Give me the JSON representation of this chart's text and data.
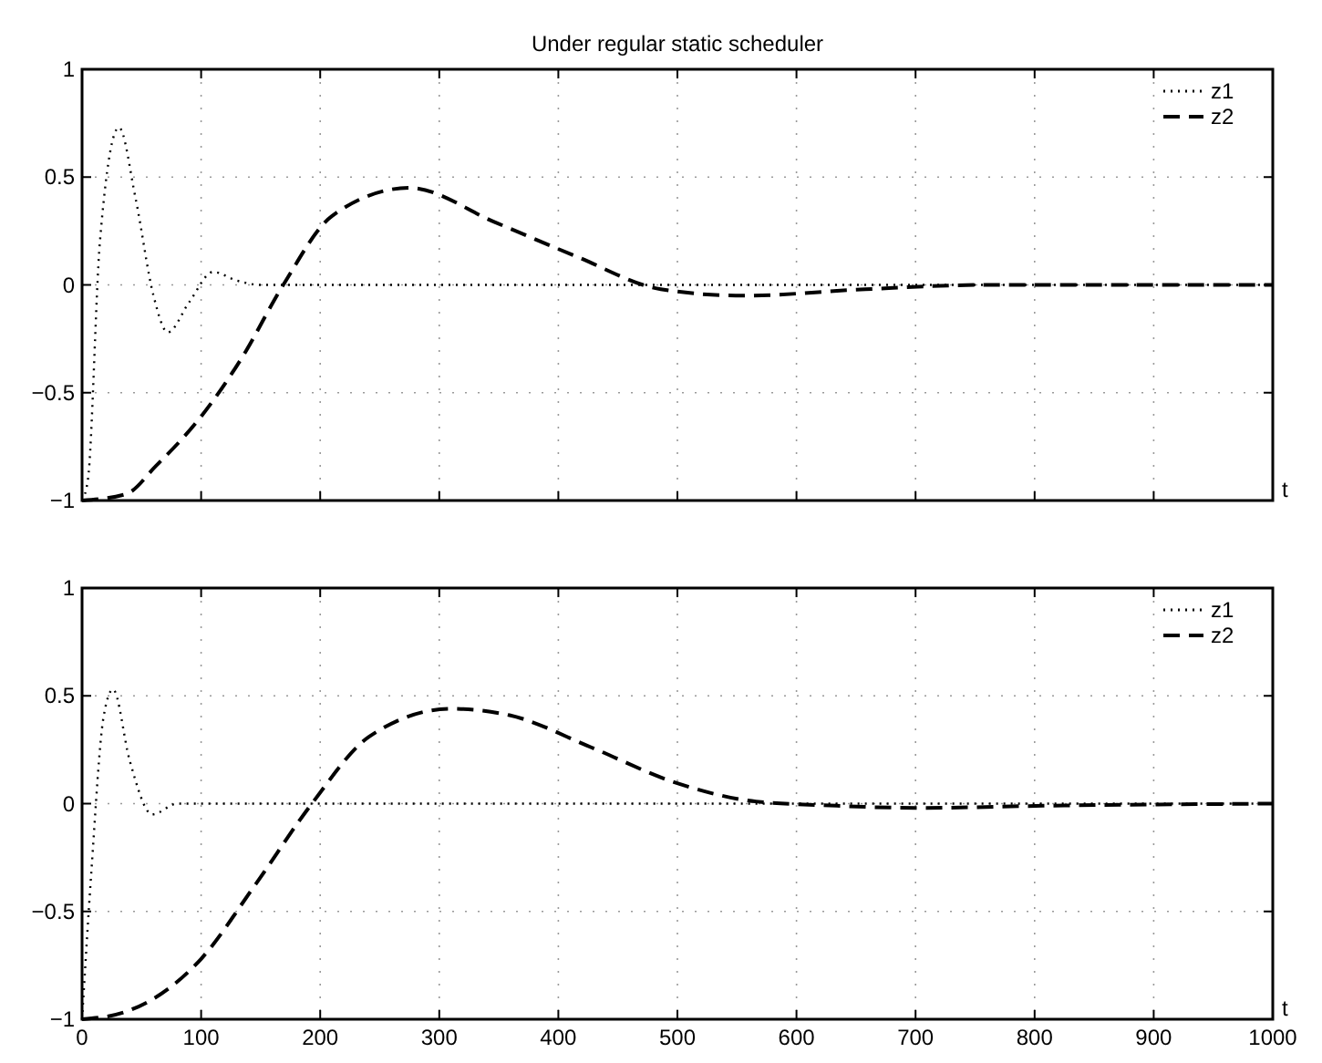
{
  "chart_data": [
    {
      "type": "line",
      "title": "Under regular static scheduler",
      "xlabel": "t",
      "xlim": [
        0,
        1000
      ],
      "ylim": [
        -1,
        1
      ],
      "xticks": [
        0,
        100,
        200,
        300,
        400,
        500,
        600,
        700,
        800,
        900,
        1000
      ],
      "yticks": [
        -1,
        -0.5,
        0,
        0.5,
        1
      ],
      "tick_labels": "y",
      "grid": true,
      "legend": "top right",
      "series": [
        {
          "name": "z1",
          "color": "#000000",
          "line_style": "dotted",
          "x": [
            0,
            5,
            15,
            31,
            45,
            60,
            72,
            90,
            110,
            130,
            150,
            200,
            400,
            1000
          ],
          "values": [
            -1,
            -0.9,
            0.2,
            0.73,
            0.4,
            -0.05,
            -0.22,
            -0.08,
            0.06,
            0.02,
            0,
            0,
            0,
            0
          ]
        },
        {
          "name": "z2",
          "color": "#000000",
          "line_style": "dashed",
          "x": [
            0,
            37,
            62,
            100,
            134,
            169,
            210,
            275,
            347,
            416,
            486,
            555,
            658,
            760,
            1000
          ],
          "values": [
            -1,
            -0.97,
            -0.84,
            -0.61,
            -0.34,
            0,
            0.32,
            0.45,
            0.29,
            0.13,
            -0.02,
            -0.05,
            -0.02,
            0,
            0
          ]
        }
      ]
    },
    {
      "type": "line",
      "xlabel": "t",
      "xlim": [
        0,
        1000
      ],
      "ylim": [
        -1,
        1
      ],
      "xticks": [
        0,
        100,
        200,
        300,
        400,
        500,
        600,
        700,
        800,
        900,
        1000
      ],
      "yticks": [
        -1,
        -0.5,
        0,
        0.5,
        1
      ],
      "grid": true,
      "legend": "top right",
      "series": [
        {
          "name": "z1",
          "color": "#000000",
          "line_style": "dotted",
          "x": [
            0,
            8,
            18,
            26,
            40,
            59,
            80,
            1000
          ],
          "values": [
            -1,
            -0.3,
            0.4,
            0.53,
            0.2,
            -0.05,
            0,
            0
          ]
        },
        {
          "name": "z2",
          "color": "#000000",
          "line_style": "dashed",
          "x": [
            0,
            34,
            100,
            145,
            193,
            241,
            310,
            359,
            428,
            497,
            566,
            634,
            703,
            807,
            1000
          ],
          "values": [
            -1,
            -0.97,
            -0.72,
            -0.38,
            0,
            0.31,
            0.44,
            0.41,
            0.26,
            0.1,
            0.01,
            -0.01,
            -0.02,
            -0.01,
            0
          ]
        }
      ]
    }
  ]
}
